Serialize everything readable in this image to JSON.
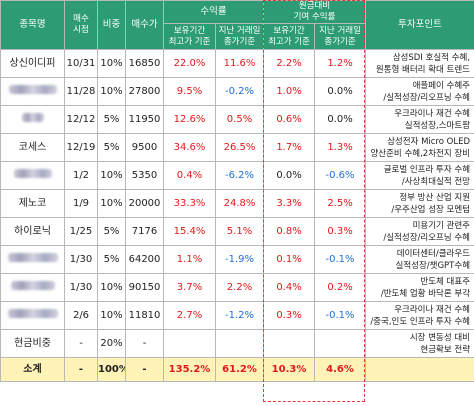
{
  "header": {
    "name": "종목명",
    "buy_time": "매수\n시점",
    "weight": "비중",
    "buy_price": "매수가",
    "return_group": "수익률",
    "return_max": "보유기간\n최고가 기준",
    "return_recent": "지난 거래일\n종가기준",
    "contrib_group": "원금대비\n기여 수익률",
    "contrib_max": "보유기간\n최고가 기준",
    "contrib_recent": "지난 거래일\n종가기준",
    "points": "투자포인트"
  },
  "rows": [
    {
      "name": "상신이디피",
      "time": "10/31",
      "weight": "10%",
      "price": "16850",
      "r_max": "22.0%",
      "r_recent": "11.6%",
      "c_max": "2.2%",
      "c_recent": "1.2%",
      "point": "삼성SDI 호실적 수혜,\n원통형 배터리 확대 트렌드",
      "blur": false,
      "colors": [
        "red",
        "red",
        "red",
        "red"
      ]
    },
    {
      "name": "",
      "time": "11/28",
      "weight": "10%",
      "price": "27800",
      "r_max": "9.5%",
      "r_recent": "-0.2%",
      "c_max": "1.0%",
      "c_recent": "0.0%",
      "point": "애플페이 수혜주\n/실적성장/리오프닝 수혜",
      "blur": true,
      "bw": 48,
      "colors": [
        "red",
        "blue",
        "red",
        "blk"
      ]
    },
    {
      "name": "",
      "time": "12/12",
      "weight": "5%",
      "price": "11950",
      "r_max": "12.6%",
      "r_recent": "0.5%",
      "c_max": "0.6%",
      "c_recent": "0.0%",
      "point": "우크라이나 재건 수혜\n실적성장,스마트팜",
      "blur": true,
      "bw": 22,
      "colors": [
        "red",
        "red",
        "red",
        "blk"
      ]
    },
    {
      "name": "코세스",
      "time": "12/19",
      "weight": "5%",
      "price": "9500",
      "r_max": "34.6%",
      "r_recent": "26.5%",
      "c_max": "1.7%",
      "c_recent": "1.3%",
      "point": "삼성전자 Micro OLED\n양산준비 수혜,2차전지 장비",
      "blur": false,
      "colors": [
        "red",
        "red",
        "red",
        "red"
      ]
    },
    {
      "name": "",
      "time": "1/2",
      "weight": "10%",
      "price": "5350",
      "r_max": "0.4%",
      "r_recent": "-6.2%",
      "c_max": "0.0%",
      "c_recent": "-0.6%",
      "point": "글로벌 인프라 투자 수혜\n/사상최대실적 전망",
      "blur": true,
      "bw": 38,
      "colors": [
        "red",
        "blue",
        "blk",
        "blue"
      ]
    },
    {
      "name": "제노코",
      "time": "1/9",
      "weight": "10%",
      "price": "20000",
      "r_max": "33.3%",
      "r_recent": "24.8%",
      "c_max": "3.3%",
      "c_recent": "2.5%",
      "point": "정부 방산 산업 지원\n/우주산업 성장 모멘텀",
      "blur": false,
      "colors": [
        "red",
        "red",
        "red",
        "red"
      ]
    },
    {
      "name": "하이로닉",
      "time": "1/25",
      "weight": "5%",
      "price": "7176",
      "r_max": "15.4%",
      "r_recent": "5.1%",
      "c_max": "0.8%",
      "c_recent": "0.3%",
      "point": "미용기기 관련주\n/실적성장/리오프닝 수혜",
      "blur": false,
      "colors": [
        "red",
        "red",
        "red",
        "red"
      ]
    },
    {
      "name": "",
      "time": "1/30",
      "weight": "5%",
      "price": "64200",
      "r_max": "1.1%",
      "r_recent": "-1.9%",
      "c_max": "0.1%",
      "c_recent": "-0.1%",
      "point": "데이터센터/클라우드\n실적성장/챗GPT수혜",
      "blur": true,
      "bw": 50,
      "colors": [
        "red",
        "blue",
        "red",
        "blue"
      ]
    },
    {
      "name": "",
      "time": "1/30",
      "weight": "10%",
      "price": "90150",
      "r_max": "3.7%",
      "r_recent": "2.2%",
      "c_max": "0.4%",
      "c_recent": "0.2%",
      "point": "반도체 대표주\n/반도체 업황 바닥론 부각",
      "blur": true,
      "bw": 44,
      "colors": [
        "red",
        "red",
        "red",
        "red"
      ]
    },
    {
      "name": "",
      "time": "2/6",
      "weight": "10%",
      "price": "11810",
      "r_max": "2.7%",
      "r_recent": "-1.2%",
      "c_max": "0.3%",
      "c_recent": "-0.1%",
      "point": "우크라이나 재건 수혜\n/중국,인도 인프라 투자 수혜",
      "blur": true,
      "bw": 50,
      "colors": [
        "red",
        "blue",
        "red",
        "blue"
      ]
    },
    {
      "name": "현금비중",
      "time": "-",
      "weight": "20%",
      "price": "-",
      "r_max": "",
      "r_recent": "",
      "c_max": "",
      "c_recent": "",
      "point": "시장 변동성 대비\n현금확보 전략",
      "blur": false,
      "colors": [
        "blk",
        "blk",
        "blk",
        "blk"
      ]
    }
  ],
  "total": {
    "name": "소계",
    "time": "-",
    "weight": "100%",
    "price": "-",
    "r_max": "135.2%",
    "r_recent": "61.2%",
    "c_max": "10.3%",
    "c_recent": "4.6%",
    "point": ""
  },
  "colors": {
    "header_green": "#2d9c75",
    "positive": "#e01a1a",
    "negative": "#1d6fd9",
    "total_bg": "#fff3b8",
    "dashed_box": "#e23a3a"
  }
}
